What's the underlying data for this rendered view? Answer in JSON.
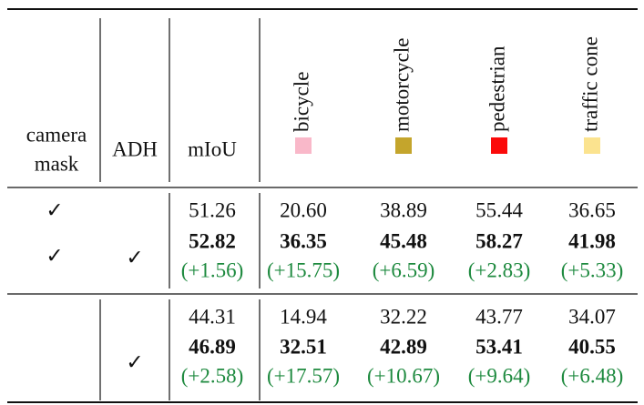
{
  "table": {
    "header": {
      "camera_mask": [
        "camera",
        "mask"
      ],
      "adh": "ADH",
      "miou": "mIoU",
      "classes": [
        {
          "label": "bicycle",
          "color": "#f9b8c9"
        },
        {
          "label": "motorcycle",
          "color": "#c4a52c"
        },
        {
          "label": "pedestrian",
          "color": "#fb0a0a"
        },
        {
          "label": "traffic cone",
          "color": "#fbe38f"
        }
      ]
    },
    "groups": [
      {
        "camera_mask_checks": [
          "✓",
          "✓"
        ],
        "adh_checks": [
          "✓"
        ],
        "rows": [
          [
            "51.26",
            "20.60",
            "38.89",
            "55.44",
            "36.65"
          ],
          [
            "52.82",
            "36.35",
            "45.48",
            "58.27",
            "41.98"
          ],
          [
            "(+1.56)",
            "(+15.75)",
            "(+6.59)",
            "(+2.83)",
            "(+5.33)"
          ]
        ]
      },
      {
        "adh_checks": [
          "✓"
        ],
        "rows": [
          [
            "44.31",
            "14.94",
            "32.22",
            "43.77",
            "34.07"
          ],
          [
            "46.89",
            "32.51",
            "42.89",
            "53.41",
            "40.55"
          ],
          [
            "(+2.58)",
            "(+17.57)",
            "(+10.67)",
            "(+9.64)",
            "(+6.48)"
          ]
        ]
      }
    ]
  }
}
